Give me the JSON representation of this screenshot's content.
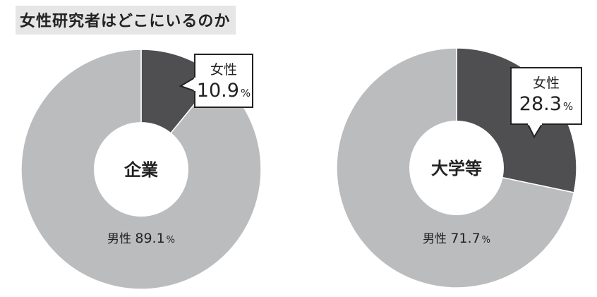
{
  "title": "女性研究者はどこにいるのか",
  "colors": {
    "female": "#4f4f51",
    "male": "#bbbcbe",
    "hole": "#ffffff",
    "text": "#222222"
  },
  "chart_data": [
    {
      "type": "pie",
      "center_label": "企業",
      "slices": [
        {
          "label": "女性",
          "value": 10.9,
          "value_text": "10.9",
          "unit": "%"
        },
        {
          "label": "男性",
          "value": 89.1,
          "value_text": "89.1",
          "unit": "%"
        }
      ]
    },
    {
      "type": "pie",
      "center_label": "大学等",
      "slices": [
        {
          "label": "女性",
          "value": 28.3,
          "value_text": "28.3",
          "unit": "%"
        },
        {
          "label": "男性",
          "value": 71.7,
          "value_text": "71.7",
          "unit": "%"
        }
      ]
    }
  ]
}
